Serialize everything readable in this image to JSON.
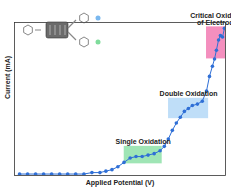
{
  "chart_data": {
    "type": "line",
    "x_label": "Applied Potential (V)",
    "y_label": "Current (mA)",
    "x": [
      2.4,
      6.2,
      10,
      13.8,
      17.6,
      21.4,
      25.2,
      29,
      32.9,
      36.7,
      40.5,
      43.3,
      46.2,
      49,
      51.9,
      54.8,
      57.6,
      60.5,
      63.3,
      66.2,
      69,
      71,
      72.9,
      74.8,
      76.7,
      78.6,
      80.5,
      82.4,
      84.3,
      86.7,
      89,
      91,
      92.4,
      93.8,
      94.8,
      95.7,
      96.7,
      97.6,
      98.6,
      99.5
    ],
    "series": [
      {
        "name": "Current",
        "color": "#2f6fd6",
        "marker": "circle",
        "line_style": "solid",
        "values": [
          1,
          1,
          1,
          1,
          1,
          1,
          1,
          1,
          1,
          2,
          2,
          3,
          4,
          6,
          9,
          12,
          13,
          13,
          14,
          15,
          17,
          20,
          25,
          31,
          36,
          40,
          44,
          46,
          48,
          49,
          51,
          58,
          68,
          75,
          80,
          86,
          93,
          96,
          95,
          101
        ]
      }
    ],
    "xlim": [
      0,
      100
    ],
    "ylim": [
      0,
      105
    ],
    "xticks": [],
    "yticks": [],
    "tick_labels": false,
    "grid": false,
    "annotations": [
      {
        "text": "Single Oxidation",
        "x1": 52,
        "x2": 70,
        "y1": 8,
        "y2": 20,
        "color": "#7fdc9c"
      },
      {
        "text": "Double Oxidation",
        "x1": 73,
        "x2": 92,
        "y1": 39,
        "y2": 53,
        "color": "#a9d3f5"
      },
      {
        "text": "Critical Oxidation of Electrodes",
        "x1": 91,
        "x2": 103,
        "y1": 80,
        "y2": 102,
        "color": "#f06aa8"
      }
    ]
  }
}
